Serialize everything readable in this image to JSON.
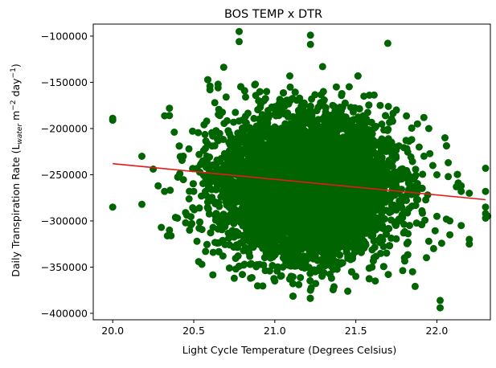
{
  "chart_data": {
    "type": "scatter",
    "title": "BOS TEMP x DTR",
    "xlabel": "Light Cycle Temperature (Degrees Celsius)",
    "ylabel": {
      "prefix": "Daily Transpiration Rate (L",
      "sub": "water",
      "mid1": " m",
      "sup1": "−2",
      "mid2": " day",
      "sup2": "−1",
      "suffix": ")"
    },
    "xlim": [
      19.88,
      22.33
    ],
    "ylim": [
      -407000,
      -87000
    ],
    "x_ticks": [
      {
        "value": 20.0,
        "label": "20.0"
      },
      {
        "value": 20.5,
        "label": "20.5"
      },
      {
        "value": 21.0,
        "label": "21.0"
      },
      {
        "value": 21.5,
        "label": "21.5"
      },
      {
        "value": 22.0,
        "label": "22.0"
      }
    ],
    "y_ticks": [
      {
        "value": -100000,
        "label": "−100000"
      },
      {
        "value": -150000,
        "label": "−150000"
      },
      {
        "value": -200000,
        "label": "−200000"
      },
      {
        "value": -250000,
        "label": "−250000"
      },
      {
        "value": -300000,
        "label": "−300000"
      },
      {
        "value": -350000,
        "label": "−350000"
      },
      {
        "value": -400000,
        "label": "−400000"
      }
    ],
    "grid": false,
    "series": [
      {
        "kind": "scatter",
        "color": "#006400",
        "points": [
          [
            20.0,
            -189000
          ],
          [
            20.0,
            -191000
          ],
          [
            20.0,
            -285000
          ],
          [
            20.18,
            -230000
          ],
          [
            20.18,
            -282000
          ],
          [
            20.25,
            -244000
          ],
          [
            20.28,
            -262000
          ],
          [
            20.3,
            -307000
          ],
          [
            20.32,
            -268000
          ],
          [
            20.35,
            -178000
          ],
          [
            20.35,
            -186000
          ],
          [
            20.35,
            -310000
          ],
          [
            20.36,
            -316000
          ],
          [
            20.38,
            -204000
          ],
          [
            20.4,
            -297000
          ],
          [
            20.45,
            -291000
          ],
          [
            20.45,
            -302000
          ],
          [
            20.47,
            -222000
          ],
          [
            20.5,
            -268000
          ],
          [
            20.52,
            -322000
          ],
          [
            20.53,
            -344000
          ],
          [
            20.55,
            -347000
          ],
          [
            20.58,
            -192000
          ],
          [
            20.6,
            -154000
          ],
          [
            20.6,
            -158000
          ],
          [
            20.62,
            -334000
          ],
          [
            20.63,
            -172000
          ],
          [
            20.65,
            -152000
          ],
          [
            20.65,
            -156000
          ],
          [
            20.68,
            -338000
          ],
          [
            20.7,
            -166000
          ],
          [
            20.72,
            -351000
          ],
          [
            20.75,
            -362000
          ],
          [
            20.76,
            -352000
          ],
          [
            20.78,
            -95000
          ],
          [
            20.78,
            -106000
          ],
          [
            20.8,
            -358000
          ],
          [
            20.82,
            -166000
          ],
          [
            20.85,
            -362000
          ],
          [
            20.88,
            -152000
          ],
          [
            20.9,
            -170000
          ],
          [
            20.95,
            -160000
          ],
          [
            21.0,
            -365000
          ],
          [
            21.05,
            -350000
          ],
          [
            21.1,
            -360000
          ],
          [
            21.22,
            -99000
          ],
          [
            21.22,
            -109000
          ],
          [
            21.22,
            -375000
          ],
          [
            21.25,
            -355000
          ],
          [
            21.3,
            -160000
          ],
          [
            21.35,
            -362000
          ],
          [
            21.38,
            -155000
          ],
          [
            21.45,
            -376000
          ],
          [
            21.5,
            -360000
          ],
          [
            21.55,
            -165000
          ],
          [
            21.6,
            -350000
          ],
          [
            21.62,
            -365000
          ],
          [
            21.65,
            -175000
          ],
          [
            21.7,
            -358000
          ],
          [
            21.75,
            -180000
          ],
          [
            21.8,
            -340000
          ],
          [
            21.85,
            -355000
          ],
          [
            21.88,
            -195000
          ],
          [
            21.92,
            -188000
          ],
          [
            21.95,
            -200000
          ],
          [
            21.95,
            -322000
          ],
          [
            21.98,
            -330000
          ],
          [
            22.0,
            -295000
          ],
          [
            22.0,
            -250000
          ],
          [
            22.02,
            -386000
          ],
          [
            22.02,
            -394000
          ],
          [
            22.05,
            -210000
          ],
          [
            22.07,
            -237000
          ],
          [
            22.07,
            -252000
          ],
          [
            22.08,
            -300000
          ],
          [
            22.08,
            -315000
          ],
          [
            22.12,
            -263000
          ],
          [
            22.15,
            -262000
          ],
          [
            22.15,
            -268000
          ],
          [
            22.15,
            -305000
          ],
          [
            22.2,
            -270000
          ],
          [
            22.2,
            -320000
          ],
          [
            22.2,
            -325000
          ],
          [
            22.3,
            -243000
          ],
          [
            22.3,
            -268000
          ],
          [
            22.3,
            -285000
          ],
          [
            22.3,
            -292000
          ],
          [
            22.3,
            -297000
          ]
        ],
        "cloud": {
          "count": 7500,
          "x_mean": 21.2,
          "x_sd": 0.26,
          "y_mean": -262000,
          "y_sd": 36000
        }
      },
      {
        "kind": "line",
        "color": "#e31a1c",
        "points": [
          [
            20.0,
            -238000
          ],
          [
            22.3,
            -277000
          ]
        ]
      }
    ]
  }
}
